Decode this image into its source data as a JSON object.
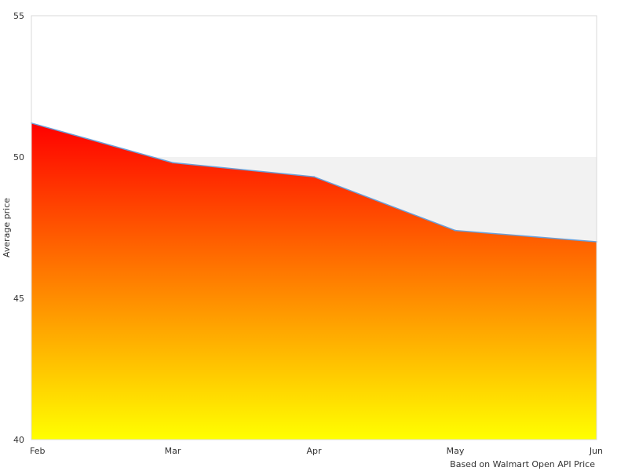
{
  "chart_data": {
    "type": "area",
    "categories": [
      "Feb",
      "Mar",
      "Apr",
      "May",
      "Jun"
    ],
    "values": [
      51.2,
      49.8,
      49.3,
      47.4,
      47.0
    ],
    "ylabel": "Average price",
    "xlabel": "",
    "ylim": [
      40,
      55
    ],
    "yticks": [
      40,
      45,
      50,
      55
    ],
    "source_note": "Based on Walmart Open API Price",
    "colors": {
      "fill_top": "#ff0000",
      "fill_bottom": "#ffff00",
      "line": "#6a9fd8",
      "band": "#f2f2f2",
      "border": "#d9d9d9"
    }
  }
}
